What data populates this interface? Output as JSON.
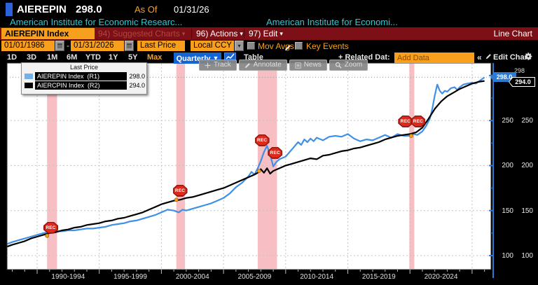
{
  "window": {
    "ticker": "AIEREPIN",
    "price": "298.0",
    "asof_label": "As Of",
    "asof_date": "01/31/26"
  },
  "securities_line": {
    "first": "American Institute for Economic Researc...",
    "second": "American Institute for Economi..."
  },
  "menu_bar": {
    "ticker_box": "AIEREPIN Index",
    "suggested": "94) Suggested Charts",
    "actions": "96) Actions",
    "edit": "97) Edit",
    "right_label": "Line Chart"
  },
  "settings_bar": {
    "date_from": "01/01/1986",
    "range_separator": "-",
    "date_to": "01/31/2026",
    "price_field": "Last Price",
    "currency": "Local CCY",
    "mov_avgs": "Mov Avgs",
    "key_events": "Key Events"
  },
  "toolbar": {
    "ranges": [
      "1D",
      "3D",
      "1M",
      "6M",
      "YTD",
      "1Y",
      "5Y",
      "Max"
    ],
    "period": "Quarterly",
    "table": "Table",
    "related": "+ Related Dat:",
    "add_data_placeholder": "Add Data",
    "collapse": "«",
    "edit_chart": "Edit Chart"
  },
  "chart_tools": {
    "track": "Track",
    "annotate": "Annotate",
    "news": "News",
    "zoom": "Zoom"
  },
  "legend": {
    "title": "Last Price",
    "rows": [
      {
        "name": "AIEREPIN Index",
        "axis": "(R1)",
        "value": "298.0",
        "color": "#72b0ee"
      },
      {
        "name": "AIERCPIN Index",
        "axis": "(R2)",
        "value": "294.0",
        "color": "#000000"
      }
    ]
  },
  "axis_badges": {
    "r1_last": "298.0",
    "r2_last": "294.0",
    "clipped": "298"
  },
  "colors": {
    "amber": "#f8a01e",
    "menu_red": "#7c1016",
    "security_cyan": "#2ec8d2",
    "line_blue": "#3f90e6",
    "axis_blue": "#2b7bd4",
    "recession_pink": "#f7bfc3"
  },
  "chart_data": {
    "type": "line",
    "title": "AIEREPIN Index (R1) vs AIERCPIN Index (R2) - Last Price, Quarterly, 01/01/1986-01/31/2026",
    "x_range": [
      1986,
      2026
    ],
    "y_axis": {
      "ticks": [
        100,
        150,
        200,
        250
      ],
      "dual_axis": [
        "R1",
        "R2"
      ]
    },
    "x_tick_labels": [
      "1990-1994",
      "1995-1999",
      "2000-2004",
      "2005-2009",
      "2010-2014",
      "2015-2019",
      "2020-2024"
    ],
    "grid": true,
    "last_price_line": 298,
    "recession_bands": [
      [
        1990.8,
        1991.6
      ],
      [
        2001.2,
        2001.9
      ],
      [
        2007.75,
        2009.3
      ],
      [
        2019.95,
        2020.35
      ]
    ],
    "event_stamps": [
      {
        "label": "REC",
        "year": 1991.1,
        "value": 131
      },
      {
        "label": "REC",
        "year": 2001.5,
        "value": 172
      },
      {
        "label": "REC",
        "year": 2008.1,
        "value": 228
      },
      {
        "label": "REC",
        "year": 2009.15,
        "value": 214
      },
      {
        "label": "REC",
        "year": 2020.15,
        "value": 249,
        "wide": true
      }
    ],
    "markers": [
      {
        "year": 1990.8,
        "value": 122
      },
      {
        "year": 2001.2,
        "value": 162
      },
      {
        "year": 2007.85,
        "value": 194
      },
      {
        "year": 2020.1,
        "value": 233
      }
    ],
    "series": [
      {
        "name": "AIEREPIN Index",
        "axis": "R1",
        "color": "#3f90e6",
        "last": "298.0",
        "points": [
          [
            1987.6,
            113
          ],
          [
            1988,
            115
          ],
          [
            1988.5,
            117
          ],
          [
            1989,
            119
          ],
          [
            1989.5,
            121
          ],
          [
            1990,
            123
          ],
          [
            1990.5,
            125
          ],
          [
            1991,
            126
          ],
          [
            1991.5,
            127
          ],
          [
            1992,
            127
          ],
          [
            1992.5,
            128
          ],
          [
            1993,
            128
          ],
          [
            1993.5,
            129
          ],
          [
            1994,
            130
          ],
          [
            1994.5,
            130
          ],
          [
            1995,
            131
          ],
          [
            1995.5,
            132
          ],
          [
            1996,
            134
          ],
          [
            1996.5,
            135
          ],
          [
            1997,
            136
          ],
          [
            1997.5,
            138
          ],
          [
            1998,
            139
          ],
          [
            1998.5,
            141
          ],
          [
            1999,
            143
          ],
          [
            1999.5,
            145
          ],
          [
            2000,
            148
          ],
          [
            2000.5,
            151
          ],
          [
            2001,
            150
          ],
          [
            2001.4,
            148
          ],
          [
            2001.7,
            151
          ],
          [
            2002,
            150
          ],
          [
            2002.5,
            152
          ],
          [
            2003,
            154
          ],
          [
            2003.5,
            156
          ],
          [
            2004,
            158
          ],
          [
            2004.5,
            161
          ],
          [
            2005,
            164
          ],
          [
            2005.5,
            169
          ],
          [
            2006,
            176
          ],
          [
            2006.5,
            181
          ],
          [
            2007,
            188
          ],
          [
            2007.25,
            193
          ],
          [
            2007.5,
            190
          ],
          [
            2007.75,
            197
          ],
          [
            2008,
            205
          ],
          [
            2008.25,
            215
          ],
          [
            2008.5,
            222
          ],
          [
            2008.75,
            212
          ],
          [
            2009,
            199
          ],
          [
            2009.25,
            204
          ],
          [
            2009.5,
            207
          ],
          [
            2010,
            210
          ],
          [
            2010.5,
            218
          ],
          [
            2011,
            226
          ],
          [
            2011.25,
            223
          ],
          [
            2011.5,
            229
          ],
          [
            2011.75,
            226
          ],
          [
            2012,
            230
          ],
          [
            2012.25,
            227
          ],
          [
            2012.5,
            231
          ],
          [
            2013,
            228
          ],
          [
            2013.5,
            232
          ],
          [
            2014,
            233
          ],
          [
            2014.5,
            232
          ],
          [
            2015,
            235
          ],
          [
            2015.5,
            230
          ],
          [
            2016,
            227
          ],
          [
            2016.5,
            229
          ],
          [
            2017,
            228
          ],
          [
            2017.5,
            231
          ],
          [
            2018,
            234
          ],
          [
            2018.5,
            231
          ],
          [
            2019,
            235
          ],
          [
            2019.5,
            233
          ],
          [
            2020,
            233
          ],
          [
            2020.3,
            235
          ],
          [
            2020.6,
            234
          ],
          [
            2021,
            238
          ],
          [
            2021.3,
            244
          ],
          [
            2021.6,
            252
          ],
          [
            2021.8,
            263
          ],
          [
            2022,
            278
          ],
          [
            2022.2,
            290
          ],
          [
            2022.4,
            283
          ],
          [
            2022.6,
            280
          ],
          [
            2022.8,
            283
          ],
          [
            2023,
            282
          ],
          [
            2023.3,
            286
          ],
          [
            2023.6,
            287
          ],
          [
            2023.8,
            284
          ],
          [
            2024,
            287
          ],
          [
            2024.3,
            290
          ],
          [
            2024.6,
            291
          ],
          [
            2025,
            292
          ],
          [
            2025.3,
            291
          ],
          [
            2025.6,
            294
          ],
          [
            2026,
            298
          ]
        ]
      },
      {
        "name": "AIERCPIN Index",
        "axis": "R2",
        "color": "#000000",
        "last": "294.0",
        "points": [
          [
            1987.6,
            110
          ],
          [
            1988,
            112
          ],
          [
            1988.5,
            114
          ],
          [
            1989,
            116
          ],
          [
            1989.5,
            119
          ],
          [
            1990,
            121
          ],
          [
            1990.5,
            123
          ],
          [
            1991,
            125
          ],
          [
            1991.5,
            126
          ],
          [
            1992,
            128
          ],
          [
            1992.5,
            129
          ],
          [
            1993,
            131
          ],
          [
            1993.5,
            132
          ],
          [
            1994,
            134
          ],
          [
            1994.5,
            135
          ],
          [
            1995,
            136
          ],
          [
            1995.5,
            138
          ],
          [
            1996,
            139
          ],
          [
            1996.5,
            141
          ],
          [
            1997,
            142
          ],
          [
            1997.5,
            144
          ],
          [
            1998,
            146
          ],
          [
            1998.5,
            148
          ],
          [
            1999,
            151
          ],
          [
            1999.5,
            154
          ],
          [
            2000,
            157
          ],
          [
            2000.5,
            159
          ],
          [
            2001,
            161
          ],
          [
            2001.5,
            162
          ],
          [
            2002,
            164
          ],
          [
            2002.5,
            165
          ],
          [
            2003,
            167
          ],
          [
            2003.5,
            169
          ],
          [
            2004,
            171
          ],
          [
            2004.5,
            173
          ],
          [
            2005,
            175
          ],
          [
            2005.5,
            178
          ],
          [
            2006,
            181
          ],
          [
            2006.5,
            184
          ],
          [
            2007,
            187
          ],
          [
            2007.5,
            190
          ],
          [
            2007.75,
            192
          ],
          [
            2008,
            196
          ],
          [
            2008.25,
            192
          ],
          [
            2008.5,
            197
          ],
          [
            2008.75,
            191
          ],
          [
            2009,
            194
          ],
          [
            2009.5,
            197
          ],
          [
            2010,
            200
          ],
          [
            2010.5,
            202
          ],
          [
            2011,
            204
          ],
          [
            2011.5,
            206
          ],
          [
            2012,
            208
          ],
          [
            2012.5,
            207
          ],
          [
            2013,
            211
          ],
          [
            2013.5,
            212
          ],
          [
            2014,
            214
          ],
          [
            2014.5,
            216
          ],
          [
            2015,
            217
          ],
          [
            2015.5,
            219
          ],
          [
            2016,
            220
          ],
          [
            2016.5,
            222
          ],
          [
            2017,
            224
          ],
          [
            2017.5,
            226
          ],
          [
            2018,
            229
          ],
          [
            2018.5,
            231
          ],
          [
            2019,
            233
          ],
          [
            2019.5,
            234
          ],
          [
            2020,
            235
          ],
          [
            2020.5,
            237
          ],
          [
            2021,
            242
          ],
          [
            2021.5,
            252
          ],
          [
            2022,
            263
          ],
          [
            2022.5,
            271
          ],
          [
            2023,
            277
          ],
          [
            2023.5,
            281
          ],
          [
            2024,
            285
          ],
          [
            2024.5,
            288
          ],
          [
            2025,
            291
          ],
          [
            2025.5,
            293
          ],
          [
            2026,
            294
          ]
        ]
      }
    ]
  }
}
